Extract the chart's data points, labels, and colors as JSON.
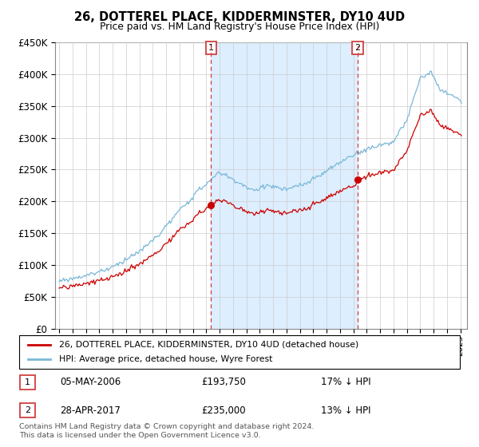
{
  "title": "26, DOTTEREL PLACE, KIDDERMINSTER, DY10 4UD",
  "subtitle": "Price paid vs. HM Land Registry's House Price Index (HPI)",
  "legend_label_red": "26, DOTTEREL PLACE, KIDDERMINSTER, DY10 4UD (detached house)",
  "legend_label_blue": "HPI: Average price, detached house, Wyre Forest",
  "sale1_label": "1",
  "sale2_label": "2",
  "sale1_date": "05-MAY-2006",
  "sale1_price": "£193,750",
  "sale1_hpi": "17% ↓ HPI",
  "sale2_date": "28-APR-2017",
  "sale2_price": "£235,000",
  "sale2_hpi": "13% ↓ HPI",
  "footnote1": "Contains HM Land Registry data © Crown copyright and database right 2024.",
  "footnote2": "This data is licensed under the Open Government Licence v3.0.",
  "ylim": [
    0,
    450000
  ],
  "yticks": [
    0,
    50000,
    100000,
    150000,
    200000,
    250000,
    300000,
    350000,
    400000,
    450000
  ],
  "sale1_x": 2006.35,
  "sale2_x": 2017.33,
  "vline_color": "#d04040",
  "red_color": "#cc0000",
  "blue_color": "#7ab8d8",
  "shade_color": "#ddeeff",
  "background_color": "#ffffff",
  "grid_color": "#cccccc",
  "xlim_left": 1994.7,
  "xlim_right": 2025.5
}
